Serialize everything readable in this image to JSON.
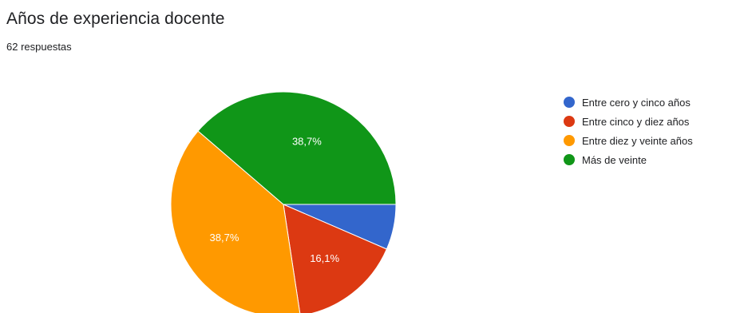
{
  "header": {
    "title": "Años de experiencia docente",
    "subtitle": "62 respuestas"
  },
  "chart_data": {
    "type": "pie",
    "title": "Años de experiencia docente",
    "total_responses": 62,
    "labels": [
      "Entre cero y cinco años",
      "Entre cinco y diez años",
      "Entre diez y veinte años",
      "Más de veinte"
    ],
    "values": [
      6.5,
      16.1,
      38.7,
      38.7
    ],
    "slice_labels": [
      "",
      "16,1%",
      "38,7%",
      "38,7%"
    ],
    "colors": [
      "#3366cc",
      "#dc3912",
      "#ff9900",
      "#109618"
    ],
    "legend_position": "right"
  }
}
